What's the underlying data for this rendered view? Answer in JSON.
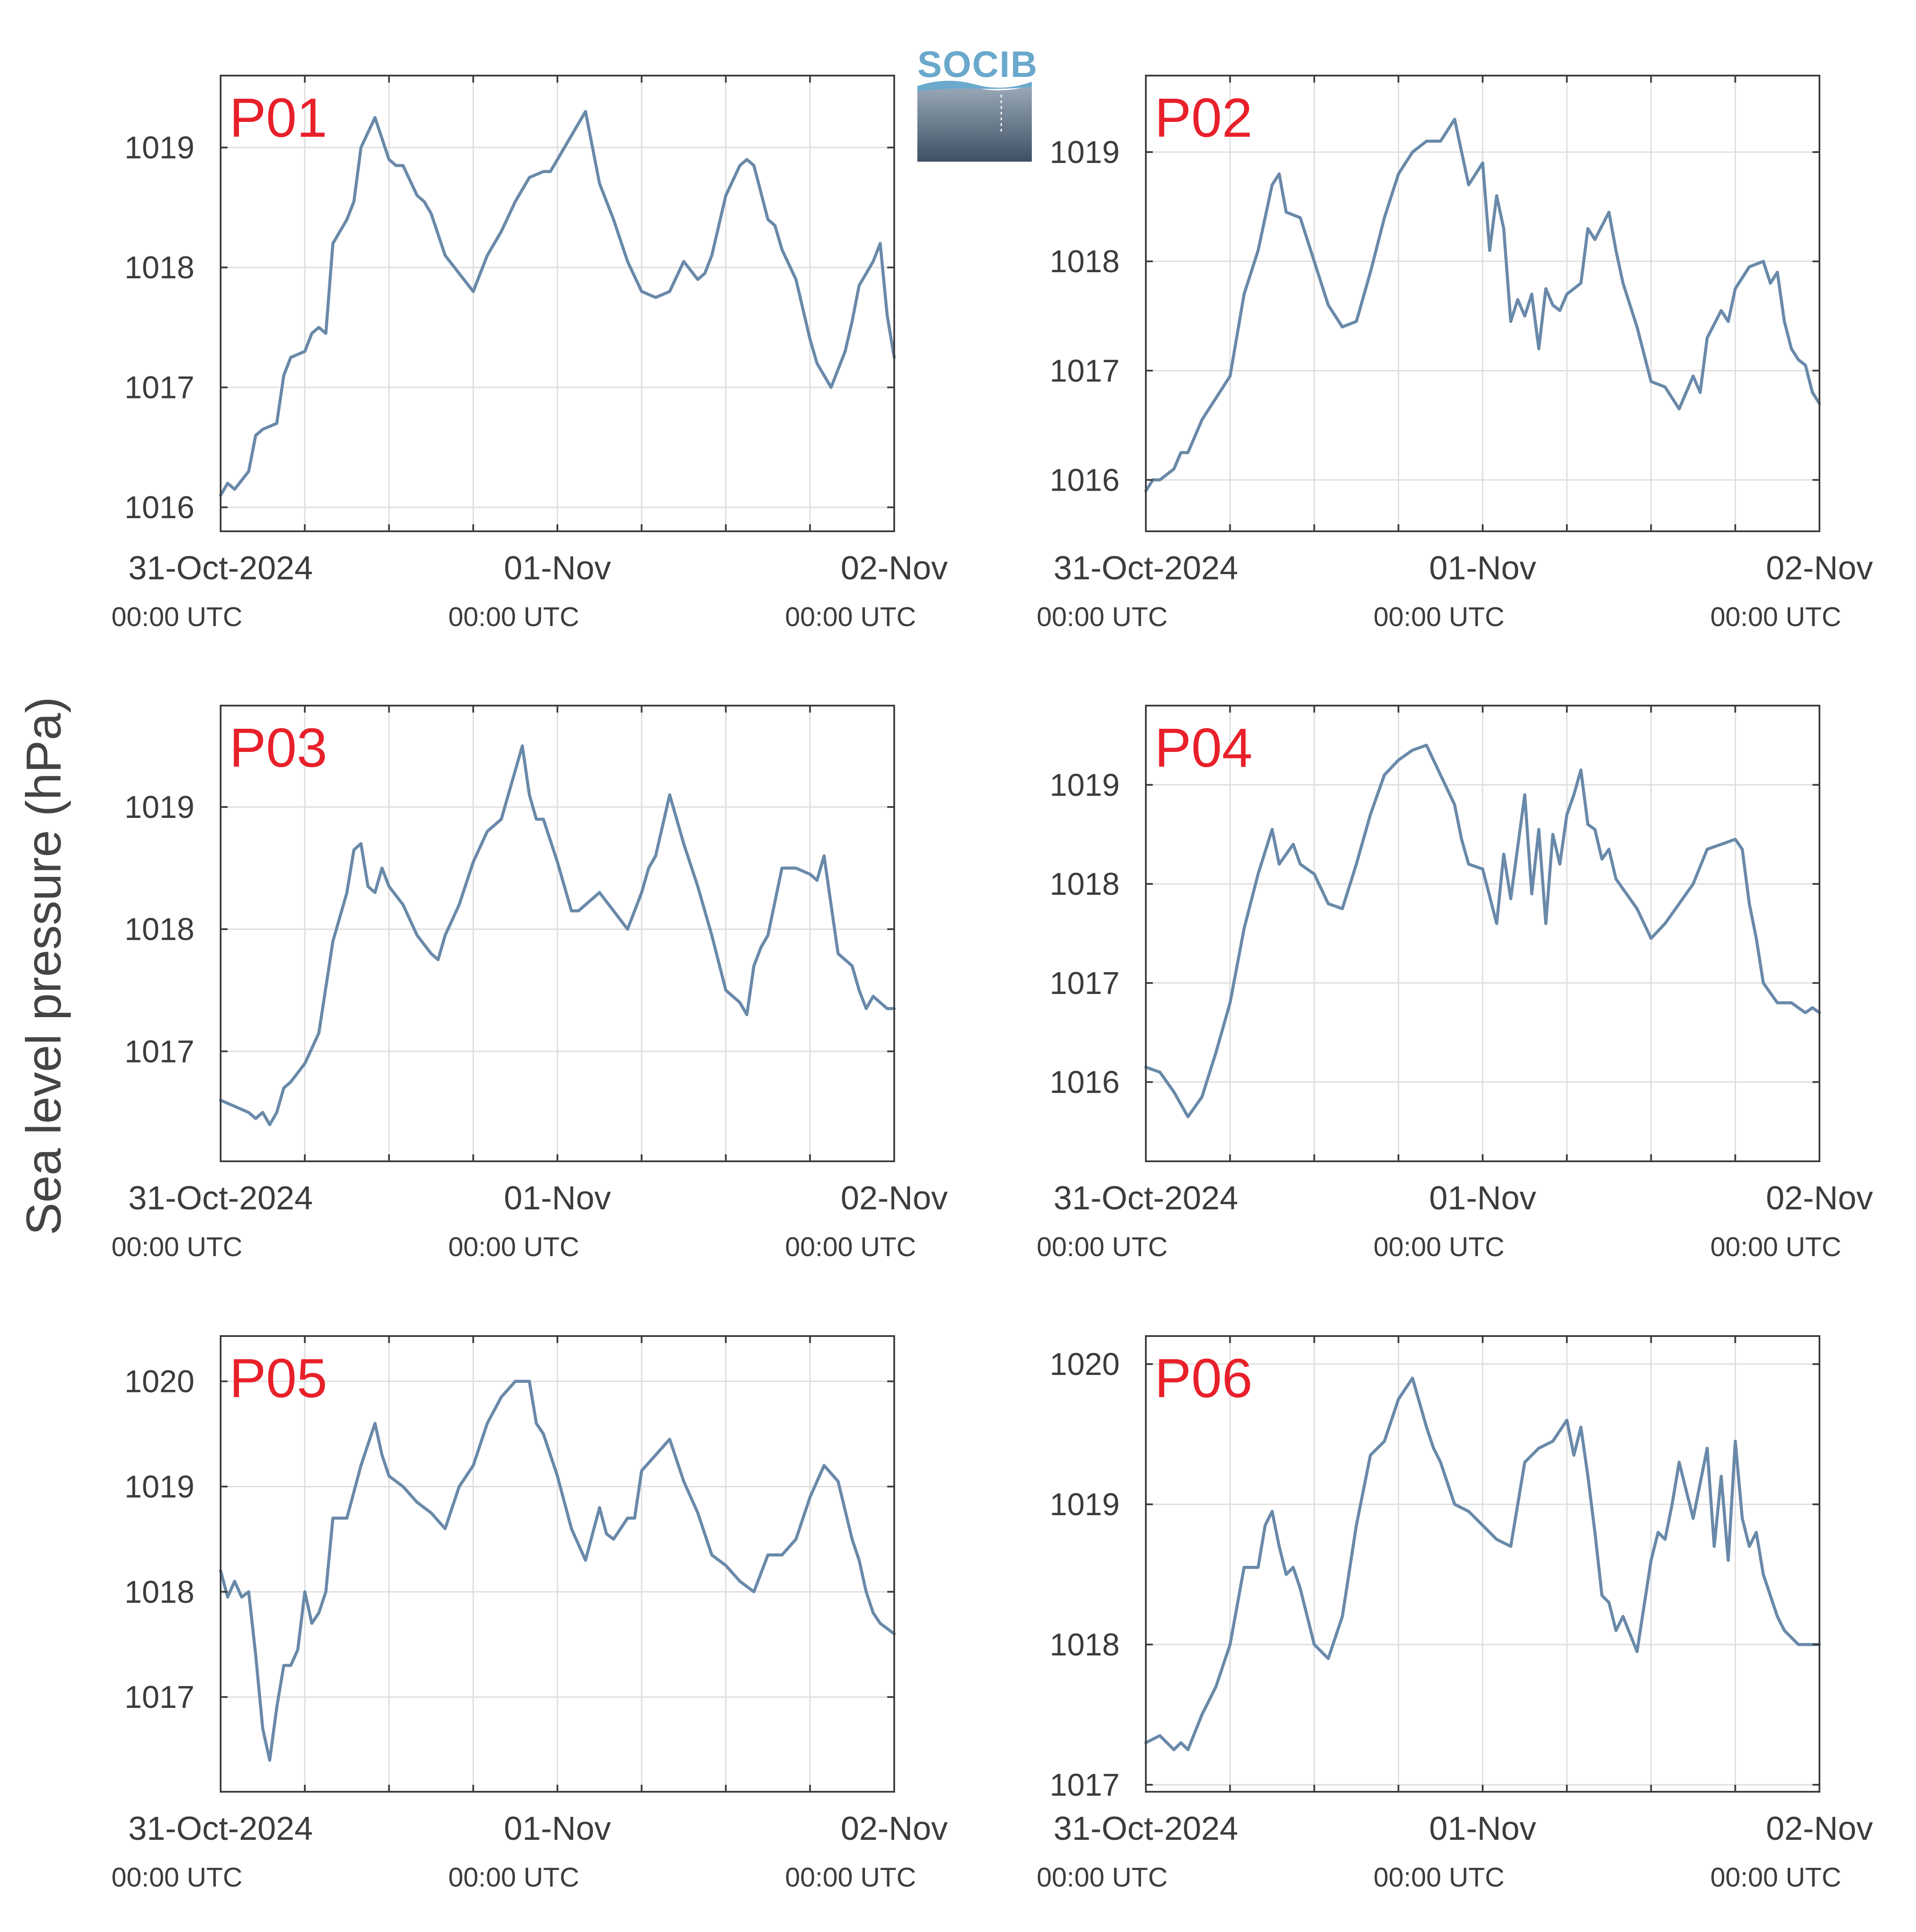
{
  "figure": {
    "ylabel": "Sea level pressure (hPa)",
    "logo_text": "SOCIB",
    "label_color": "#e8202a",
    "line_color": "#6989a9"
  },
  "chart_data": [
    {
      "type": "line",
      "panel": "P01",
      "x_tick_labels": [
        [
          "31-Oct-2024",
          "00:00 UTC"
        ],
        [
          "01-Nov",
          "00:00 UTC"
        ],
        [
          "02-Nov",
          "00:00 UTC"
        ]
      ],
      "xlim": [
        0,
        48
      ],
      "ylim": [
        1015.8,
        1019.6
      ],
      "y_ticks": [
        1016,
        1017,
        1018,
        1019
      ],
      "grid": true,
      "x": [
        0,
        0.5,
        1,
        2,
        2.5,
        3,
        4,
        4.5,
        5,
        6,
        6.5,
        7,
        7.5,
        8,
        9,
        9.5,
        10,
        11,
        12,
        12.5,
        13,
        14,
        14.5,
        15,
        16,
        17,
        18,
        19,
        20,
        21,
        22,
        23,
        23.5,
        24,
        25,
        26,
        27,
        28,
        29,
        30,
        31,
        32,
        33,
        34,
        34.5,
        35,
        36,
        37,
        37.5,
        38,
        39,
        39.5,
        40,
        41,
        42,
        42.5,
        43,
        43.5,
        44,
        44.5,
        45,
        45.5,
        46,
        46.5,
        47,
        47.5,
        48
      ],
      "values": [
        1016.1,
        1016.2,
        1016.15,
        1016.3,
        1016.6,
        1016.65,
        1016.7,
        1017.1,
        1017.25,
        1017.3,
        1017.45,
        1017.5,
        1017.45,
        1018.2,
        1018.4,
        1018.55,
        1019.0,
        1019.25,
        1018.9,
        1018.85,
        1018.85,
        1018.6,
        1018.55,
        1018.45,
        1018.1,
        1017.95,
        1017.8,
        1018.1,
        1018.3,
        1018.55,
        1018.75,
        1018.8,
        1018.8,
        1018.9,
        1019.1,
        1019.3,
        1018.7,
        1018.4,
        1018.05,
        1017.8,
        1017.75,
        1017.8,
        1018.05,
        1017.9,
        1017.95,
        1018.1,
        1018.6,
        1018.85,
        1018.9,
        1018.85,
        1018.4,
        1018.35,
        1018.15,
        1017.9,
        1017.4,
        1017.2,
        1017.1,
        1017.0,
        1017.15,
        1017.3,
        1017.55,
        1017.85,
        1017.95,
        1018.05,
        1018.2,
        1017.6,
        1017.25
      ]
    },
    {
      "type": "line",
      "panel": "P02",
      "x_tick_labels": [
        [
          "31-Oct-2024",
          "00:00 UTC"
        ],
        [
          "01-Nov",
          "00:00 UTC"
        ],
        [
          "02-Nov",
          "00:00 UTC"
        ]
      ],
      "xlim": [
        0,
        48
      ],
      "ylim": [
        1015.53,
        1019.7
      ],
      "y_ticks": [
        1016,
        1017,
        1018,
        1019
      ],
      "grid": true,
      "x": [
        0,
        0.5,
        1,
        2,
        2.5,
        3,
        4,
        5,
        6,
        7,
        8,
        9,
        9.5,
        10,
        11,
        12,
        13,
        14,
        15,
        16,
        17,
        18,
        19,
        20,
        21,
        21.5,
        22,
        23,
        24,
        24.5,
        25,
        25.5,
        26,
        26.5,
        27,
        27.5,
        28,
        28.5,
        29,
        29.5,
        30,
        30.5,
        31,
        31.5,
        32,
        33,
        33.5,
        34,
        35,
        36,
        37,
        38,
        39,
        39.5,
        40,
        41,
        41.5,
        42,
        43,
        44,
        44.5,
        45,
        45.5,
        46,
        46.5,
        47,
        47.5,
        48
      ],
      "values": [
        1015.9,
        1016.0,
        1016.0,
        1016.1,
        1016.25,
        1016.25,
        1016.55,
        1016.75,
        1016.95,
        1017.7,
        1018.1,
        1018.7,
        1018.8,
        1018.45,
        1018.4,
        1018.0,
        1017.6,
        1017.4,
        1017.45,
        1017.9,
        1018.4,
        1018.8,
        1019.0,
        1019.1,
        1019.1,
        1019.2,
        1019.3,
        1018.7,
        1018.9,
        1018.1,
        1018.6,
        1018.3,
        1017.45,
        1017.65,
        1017.5,
        1017.7,
        1017.2,
        1017.75,
        1017.6,
        1017.55,
        1017.7,
        1017.75,
        1017.8,
        1018.3,
        1018.2,
        1018.45,
        1018.1,
        1017.8,
        1017.4,
        1016.9,
        1016.85,
        1016.65,
        1016.95,
        1016.8,
        1017.3,
        1017.55,
        1017.45,
        1017.75,
        1017.95,
        1018.0,
        1017.8,
        1017.9,
        1017.45,
        1017.2,
        1017.1,
        1017.05,
        1016.8,
        1016.7
      ]
    },
    {
      "type": "line",
      "panel": "P03",
      "x_tick_labels": [
        [
          "31-Oct-2024",
          "00:00 UTC"
        ],
        [
          "01-Nov",
          "00:00 UTC"
        ],
        [
          "02-Nov",
          "00:00 UTC"
        ]
      ],
      "xlim": [
        0,
        48
      ],
      "ylim": [
        1016.1,
        1019.83
      ],
      "y_ticks": [
        1017,
        1018,
        1019
      ],
      "grid": true,
      "x": [
        0,
        1,
        2,
        2.5,
        3,
        3.5,
        4,
        4.5,
        5,
        6,
        7,
        8,
        9,
        9.5,
        10,
        10.5,
        11,
        11.5,
        12,
        13,
        14,
        15,
        15.5,
        16,
        17,
        18,
        19,
        20,
        21,
        21.5,
        22,
        22.5,
        23,
        24,
        25,
        25.5,
        26,
        27,
        28,
        29,
        30,
        30.5,
        31,
        32,
        33,
        34,
        35,
        36,
        37,
        37.5,
        38,
        38.5,
        39,
        40,
        41,
        42,
        42.5,
        43,
        43.5,
        44,
        45,
        45.5,
        46,
        46.5,
        47,
        47.5,
        48
      ],
      "values": [
        1016.6,
        1016.55,
        1016.5,
        1016.45,
        1016.5,
        1016.4,
        1016.5,
        1016.7,
        1016.75,
        1016.9,
        1017.15,
        1017.9,
        1018.3,
        1018.65,
        1018.7,
        1018.35,
        1018.3,
        1018.5,
        1018.35,
        1018.2,
        1017.95,
        1017.8,
        1017.75,
        1017.95,
        1018.2,
        1018.55,
        1018.8,
        1018.9,
        1019.3,
        1019.5,
        1019.1,
        1018.9,
        1018.9,
        1018.55,
        1018.15,
        1018.15,
        1018.2,
        1018.3,
        1018.15,
        1018.0,
        1018.3,
        1018.5,
        1018.6,
        1019.1,
        1018.7,
        1018.35,
        1017.95,
        1017.5,
        1017.4,
        1017.3,
        1017.7,
        1017.85,
        1017.95,
        1018.5,
        1018.5,
        1018.45,
        1018.4,
        1018.6,
        1018.2,
        1017.8,
        1017.7,
        1017.5,
        1017.35,
        1017.45,
        1017.4,
        1017.35,
        1017.35
      ]
    },
    {
      "type": "line",
      "panel": "P04",
      "x_tick_labels": [
        [
          "31-Oct-2024",
          "00:00 UTC"
        ],
        [
          "01-Nov",
          "00:00 UTC"
        ],
        [
          "02-Nov",
          "00:00 UTC"
        ]
      ],
      "xlim": [
        0,
        48
      ],
      "ylim": [
        1015.2,
        1019.8
      ],
      "y_ticks": [
        1016,
        1017,
        1018,
        1019
      ],
      "grid": true,
      "x": [
        0,
        1,
        2,
        3,
        4,
        5,
        6,
        7,
        8,
        9,
        9.5,
        10,
        10.5,
        11,
        12,
        13,
        14,
        15,
        16,
        17,
        18,
        19,
        20,
        21,
        22,
        22.5,
        23,
        24,
        25,
        25.5,
        26,
        27,
        27.5,
        28,
        28.5,
        29,
        29.5,
        30,
        30.5,
        31,
        31.5,
        32,
        32.5,
        33,
        33.5,
        34,
        35,
        36,
        37,
        38,
        39,
        40,
        41,
        42,
        42.5,
        43,
        43.5,
        44,
        45,
        46,
        46.5,
        47,
        47.5,
        48
      ],
      "values": [
        1016.15,
        1016.1,
        1015.9,
        1015.65,
        1015.85,
        1016.3,
        1016.8,
        1017.55,
        1018.1,
        1018.55,
        1018.2,
        1018.3,
        1018.4,
        1018.2,
        1018.1,
        1017.8,
        1017.75,
        1018.2,
        1018.7,
        1019.1,
        1019.25,
        1019.35,
        1019.4,
        1019.1,
        1018.8,
        1018.45,
        1018.2,
        1018.15,
        1017.6,
        1018.3,
        1017.85,
        1018.9,
        1017.9,
        1018.55,
        1017.6,
        1018.5,
        1018.2,
        1018.7,
        1018.9,
        1019.15,
        1018.6,
        1018.55,
        1018.25,
        1018.35,
        1018.05,
        1017.95,
        1017.75,
        1017.45,
        1017.6,
        1017.8,
        1018.0,
        1018.35,
        1018.4,
        1018.45,
        1018.35,
        1017.8,
        1017.45,
        1017.0,
        1016.8,
        1016.8,
        1016.75,
        1016.7,
        1016.75,
        1016.7
      ]
    },
    {
      "type": "line",
      "panel": "P05",
      "x_tick_labels": [
        [
          "31-Oct-2024",
          "00:00 UTC"
        ],
        [
          "01-Nov",
          "00:00 UTC"
        ],
        [
          "02-Nov",
          "00:00 UTC"
        ]
      ],
      "xlim": [
        0,
        48
      ],
      "ylim": [
        1016.1,
        1020.43
      ],
      "y_ticks": [
        1017,
        1018,
        1019,
        1020
      ],
      "grid": true,
      "x": [
        0,
        0.5,
        1,
        1.5,
        2,
        2.5,
        3,
        3.5,
        4,
        4.5,
        5,
        5.5,
        6,
        6.5,
        7,
        7.5,
        8,
        9,
        10,
        11,
        11.5,
        12,
        13,
        14,
        15,
        16,
        17,
        18,
        19,
        20,
        21,
        22,
        22.5,
        23,
        24,
        25,
        26,
        27,
        27.5,
        28,
        29,
        29.5,
        30,
        31,
        32,
        33,
        34,
        35,
        36,
        37,
        38,
        39,
        40,
        41,
        42,
        43,
        44,
        45,
        45.5,
        46,
        46.5,
        47,
        47.5,
        48
      ],
      "values": [
        1018.2,
        1017.95,
        1018.1,
        1017.95,
        1018.0,
        1017.4,
        1016.7,
        1016.4,
        1016.9,
        1017.3,
        1017.3,
        1017.45,
        1018.0,
        1017.7,
        1017.8,
        1018.0,
        1018.7,
        1018.7,
        1019.2,
        1019.6,
        1019.3,
        1019.1,
        1019.0,
        1018.85,
        1018.75,
        1018.6,
        1019.0,
        1019.2,
        1019.6,
        1019.85,
        1020.0,
        1020.0,
        1019.6,
        1019.5,
        1019.1,
        1018.6,
        1018.3,
        1018.8,
        1018.55,
        1018.5,
        1018.7,
        1018.7,
        1019.15,
        1019.3,
        1019.45,
        1019.05,
        1018.75,
        1018.35,
        1018.25,
        1018.1,
        1018.0,
        1018.35,
        1018.35,
        1018.5,
        1018.9,
        1019.2,
        1019.05,
        1018.5,
        1018.3,
        1018.0,
        1017.8,
        1017.7,
        1017.65,
        1017.6
      ]
    },
    {
      "type": "line",
      "panel": "P06",
      "x_tick_labels": [
        [
          "31-Oct-2024",
          "00:00 UTC"
        ],
        [
          "01-Nov",
          "00:00 UTC"
        ],
        [
          "02-Nov",
          "00:00 UTC"
        ]
      ],
      "xlim": [
        0,
        48
      ],
      "ylim": [
        1016.95,
        1020.2
      ],
      "y_ticks": [
        1017,
        1018,
        1019,
        1020
      ],
      "grid": true,
      "x": [
        0,
        1,
        2,
        2.5,
        3,
        4,
        5,
        6,
        7,
        8,
        8.5,
        9,
        9.5,
        10,
        10.5,
        11,
        12,
        13,
        14,
        15,
        16,
        17,
        18,
        19,
        20,
        20.5,
        21,
        22,
        23,
        24,
        25,
        26,
        27,
        28,
        29,
        30,
        30.5,
        31,
        31.5,
        32,
        32.5,
        33,
        33.5,
        34,
        35,
        36,
        36.5,
        37,
        37.5,
        38,
        39,
        40,
        40.5,
        41,
        41.5,
        42,
        42.5,
        43,
        43.5,
        44,
        45,
        45.5,
        46,
        46.5,
        47,
        47.5,
        48
      ],
      "values": [
        1017.3,
        1017.35,
        1017.25,
        1017.3,
        1017.25,
        1017.5,
        1017.7,
        1018.0,
        1018.55,
        1018.55,
        1018.85,
        1018.95,
        1018.7,
        1018.5,
        1018.55,
        1018.4,
        1018.0,
        1017.9,
        1018.2,
        1018.85,
        1019.35,
        1019.45,
        1019.75,
        1019.9,
        1019.55,
        1019.4,
        1019.3,
        1019.0,
        1018.95,
        1018.85,
        1018.75,
        1018.7,
        1019.3,
        1019.4,
        1019.45,
        1019.6,
        1019.35,
        1019.55,
        1019.2,
        1018.8,
        1018.35,
        1018.3,
        1018.1,
        1018.2,
        1017.95,
        1018.6,
        1018.8,
        1018.75,
        1019.0,
        1019.3,
        1018.9,
        1019.4,
        1018.7,
        1019.2,
        1018.6,
        1019.45,
        1018.9,
        1018.7,
        1018.8,
        1018.5,
        1018.2,
        1018.1,
        1018.05,
        1018.0,
        1018.0,
        1018.0,
        1018.0
      ]
    }
  ]
}
